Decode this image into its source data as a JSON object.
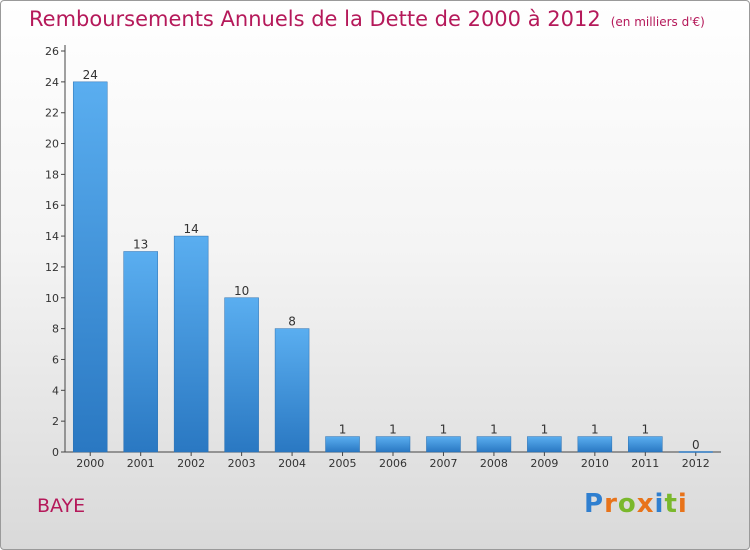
{
  "chart_data": {
    "type": "bar",
    "title": "Remboursements Annuels de la Dette de 2000 à 2012",
    "unit": "(en milliers d'€)",
    "categories": [
      "2000",
      "2001",
      "2002",
      "2003",
      "2004",
      "2005",
      "2006",
      "2007",
      "2008",
      "2009",
      "2010",
      "2011",
      "2012"
    ],
    "values": [
      24,
      13,
      14,
      10,
      8,
      1,
      1,
      1,
      1,
      1,
      1,
      1,
      0
    ],
    "ylim": [
      0,
      26
    ],
    "yticks": [
      0,
      2,
      4,
      6,
      8,
      10,
      12,
      14,
      16,
      18,
      20,
      22,
      24,
      26
    ],
    "xlabel": "",
    "ylabel": "",
    "grid": false,
    "bar_color": "#3d8fd6"
  },
  "location": "BAYE",
  "logo": {
    "text": "Proxiti",
    "letters": [
      "P",
      "r",
      "o",
      "x",
      "i",
      "t",
      "i"
    ]
  },
  "colors": {
    "title": "#b5195a",
    "logo": [
      "#2f7fd0",
      "#e8731a",
      "#7ab82c",
      "#e8731a",
      "#2f7fd0",
      "#7ab82c",
      "#e8731a"
    ]
  }
}
